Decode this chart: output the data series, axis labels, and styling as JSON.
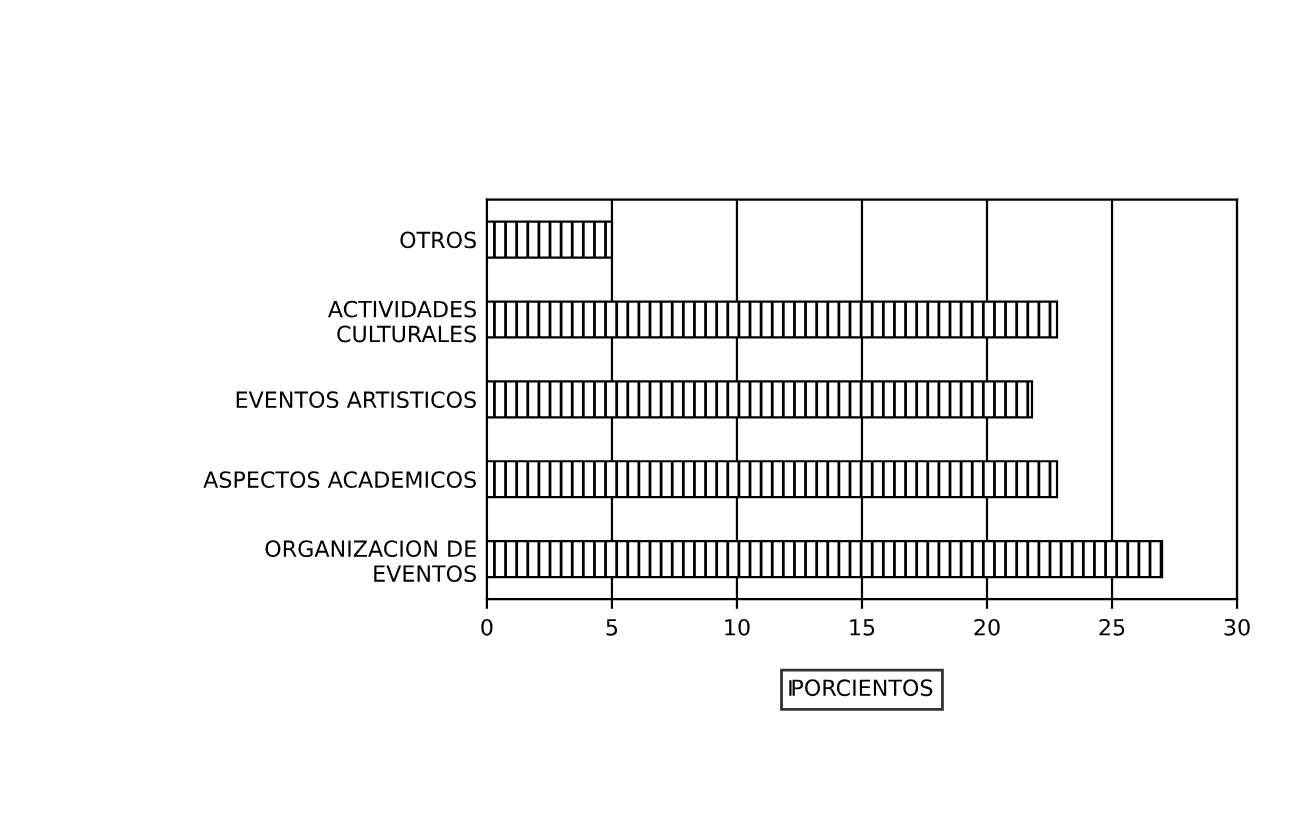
{
  "chart_data": {
    "type": "bar",
    "orientation": "horizontal",
    "categories": [
      "OTROS",
      "ACTIVIDADES\nCULTURALES",
      "EVENTOS ARTISTICOS",
      "ASPECTOS ACADEMICOS",
      "ORGANIZACION DE\nEVENTOS"
    ],
    "series": [
      {
        "name": "PORCIENTOS",
        "color": "#000000",
        "values": [
          5.0,
          22.8,
          21.8,
          22.8,
          27.0
        ]
      }
    ],
    "xlim": [
      0,
      30
    ],
    "xticks": [
      0,
      5,
      10,
      15,
      20,
      25,
      30
    ],
    "grid": "x",
    "legend": "bottom"
  }
}
